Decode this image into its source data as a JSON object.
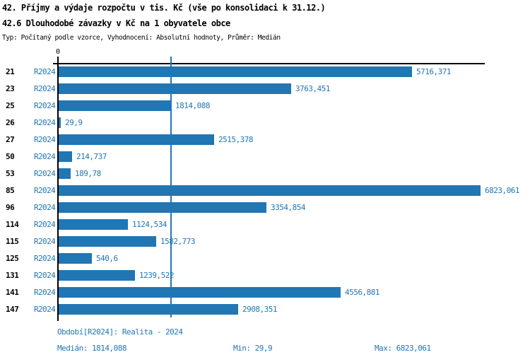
{
  "header": {
    "title_line1": "42. Příjmy a výdaje rozpočtu v tis. Kč (vše po konsolidaci k 31.12.)",
    "title_line2": "42.6 Dlouhodobé závazky v Kč na 1 obyvatele obce",
    "meta_line": "Typ: Počítaný podle vzorce, Vyhodnocení: Absolutní hodnoty, Průměr: Medián"
  },
  "colors": {
    "bar": "#2176b4",
    "blue_text": "#2176b4",
    "axis": "#000000"
  },
  "chart_data": {
    "type": "bar",
    "orientation": "horizontal",
    "series_label": "R2024",
    "categories": [
      "21",
      "23",
      "25",
      "26",
      "27",
      "50",
      "53",
      "85",
      "96",
      "114",
      "115",
      "125",
      "131",
      "141",
      "147"
    ],
    "values": [
      5716.371,
      3763.451,
      1814.088,
      29.9,
      2515.378,
      214.737,
      189.78,
      6823.061,
      3354.854,
      1124.534,
      1582.773,
      540.6,
      1239.522,
      4556.881,
      2908.351
    ],
    "value_labels": [
      "5716,371",
      "3763,451",
      "1814,088",
      "29,9",
      "2515,378",
      "214,737",
      "189,78",
      "6823,061",
      "3354,854",
      "1124,534",
      "1582,773",
      "540,6",
      "1239,522",
      "4556,881",
      "2908,351"
    ],
    "xlim": [
      0,
      6823.061
    ],
    "x_axis_zero_tick": "0",
    "median_line_value": 1814.088,
    "grid": false,
    "legend_position": "none"
  },
  "footer": {
    "period": "Období[R2024]: Realita - 2024",
    "median": "Medián: 1814,088",
    "min": "Min: 29,9",
    "max": "Max: 6823,061"
  }
}
